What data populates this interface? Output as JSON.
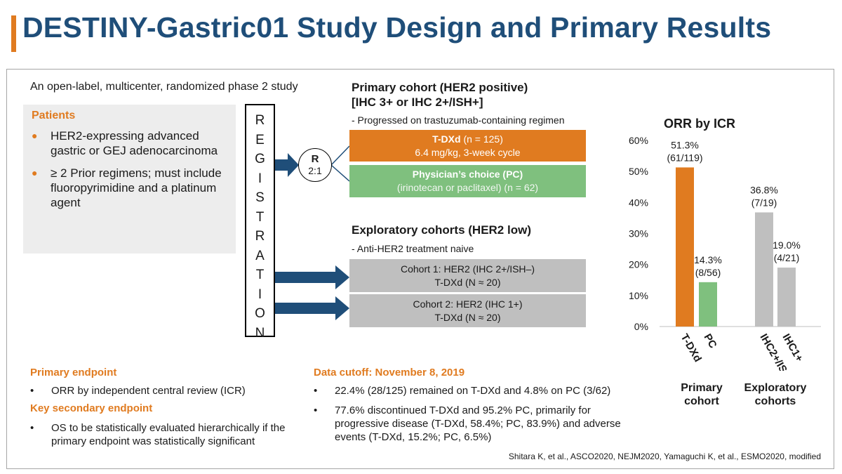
{
  "title": "DESTINY-Gastric01 Study Design and Primary Results",
  "subtitle": "An open-label, multicenter, randomized phase 2 study",
  "patients": {
    "heading": "Patients",
    "items": [
      "HER2-expressing advanced gastric or GEJ adenocarcinoma",
      "≥ 2 Prior regimens; must include fluoropyrimidine and a platinum agent"
    ]
  },
  "registration": [
    "R",
    "E",
    "G",
    "I",
    "S",
    "T",
    "R",
    "A",
    "T",
    "I",
    "O",
    "N"
  ],
  "randomization": {
    "label": "R",
    "ratio": "2:1"
  },
  "primary_cohort": {
    "title_line1": "Primary cohort (HER2 positive)",
    "title_line2": "[IHC 3+ or IHC 2+/ISH+]",
    "note": "- Progressed on trastuzumab-containing regimen",
    "arms": [
      {
        "name": "T-DXd",
        "count": " (n = 125)",
        "detail": "6.4 mg/kg, 3-week cycle"
      },
      {
        "name": "Physician’s choice (PC)",
        "count": "",
        "detail": "(irinotecan or paclitaxel) (n = 62)"
      }
    ]
  },
  "exploratory_cohorts": {
    "title": "Exploratory cohorts (HER2 low)",
    "note": "- Anti-HER2 treatment naive",
    "cohorts": [
      {
        "line1": "Cohort 1: HER2 (IHC 2+/ISH–)",
        "line2": "T-DXd (N ≈ 20)"
      },
      {
        "line1": "Cohort 2: HER2 (IHC 1+)",
        "line2": "T-DXd (N ≈ 20)"
      }
    ]
  },
  "chart_data": {
    "type": "bar",
    "title": "ORR by ICR",
    "yticks": [
      "60%",
      "50%",
      "40%",
      "30%",
      "20%",
      "10%",
      "0%"
    ],
    "ylim": [
      0,
      60
    ],
    "categories": [
      "T-DXd",
      "PC",
      "IHC2+/ISH-",
      "IHC1+"
    ],
    "values": [
      51.3,
      14.3,
      36.8,
      19.0
    ],
    "value_labels": [
      [
        "51.3%",
        "(61/119)"
      ],
      [
        "14.3%",
        "(8/56)"
      ],
      [
        "36.8%",
        "(7/19)"
      ],
      [
        "19.0%",
        "(4/21)"
      ]
    ],
    "colors": [
      "#e07b20",
      "#7fc07e",
      "#bfbfbf",
      "#bfbfbf"
    ],
    "groups": [
      {
        "label_line1": "Primary",
        "label_line2": "cohort"
      },
      {
        "label_line1": "Exploratory",
        "label_line2": "cohorts"
      }
    ],
    "grid": false
  },
  "primary_endpoint": {
    "heading": "Primary endpoint",
    "item": "ORR by independent central review (ICR)"
  },
  "key_secondary_endpoint": {
    "heading": "Key secondary endpoint",
    "item": "OS to be statistically evaluated hierarchically if the primary endpoint was statistically significant"
  },
  "data_cutoff": {
    "heading": "Data cutoff: November 8, 2019",
    "items": [
      "22.4% (28/125) remained on T-DXd and 4.8% on PC (3/62)",
      "77.6% discontinued T-DXd and 95.2% PC, primarily for progressive disease (T-DXd, 58.4%; PC, 83.9%) and adverse events (T-DXd, 15.2%; PC, 6.5%)"
    ]
  },
  "bullet_symbol": "•",
  "citation": "Shitara K, et al., ASCO2020, NEJM2020, Yamaguchi K, et al., ESMO2020, modified",
  "colors": {
    "title": "#1f4e79",
    "accent": "#e07b20",
    "pc": "#7fc07e",
    "exploratory": "#bfbfbf",
    "arrow": "#1f4e79"
  }
}
